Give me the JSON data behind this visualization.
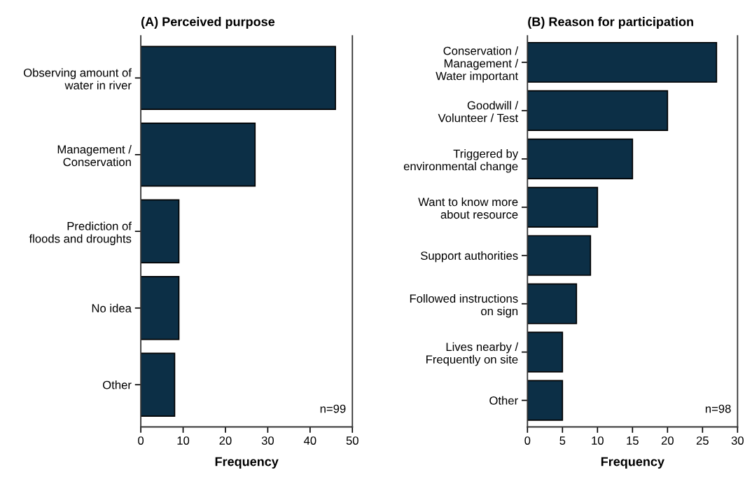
{
  "chart_data": [
    {
      "type": "bar",
      "orientation": "horizontal",
      "title": "(A) Perceived purpose",
      "xlabel": "Frequency",
      "categories": [
        "Observing amount of\nwater in river",
        "Management /\nConservation",
        "Prediction of\nfloods and droughts",
        "No idea",
        "Other"
      ],
      "values": [
        46,
        27,
        9,
        9,
        8
      ],
      "color": "#0c2f46",
      "xlim": [
        0,
        50
      ],
      "xticks": [
        0,
        10,
        20,
        30,
        40,
        50
      ],
      "grid": false,
      "legend": false,
      "annotations": [
        "n=99"
      ]
    },
    {
      "type": "bar",
      "orientation": "horizontal",
      "title": "(B) Reason for participation",
      "xlabel": "Frequency",
      "categories": [
        "Conservation /\nManagement /\nWater important",
        "Goodwill /\nVolunteer / Test",
        "Triggered by\nenvironmental change",
        "Want to know more\nabout resource",
        "Support authorities",
        "Followed instructions\non sign",
        "Lives nearby /\nFrequently on site",
        "Other"
      ],
      "values": [
        27,
        20,
        15,
        10,
        9,
        7,
        5,
        5
      ],
      "color": "#0c2f46",
      "xlim": [
        0,
        30
      ],
      "xticks": [
        0,
        5,
        10,
        15,
        20,
        25,
        30
      ],
      "grid": false,
      "legend": false,
      "annotations": [
        "n=98"
      ]
    }
  ]
}
